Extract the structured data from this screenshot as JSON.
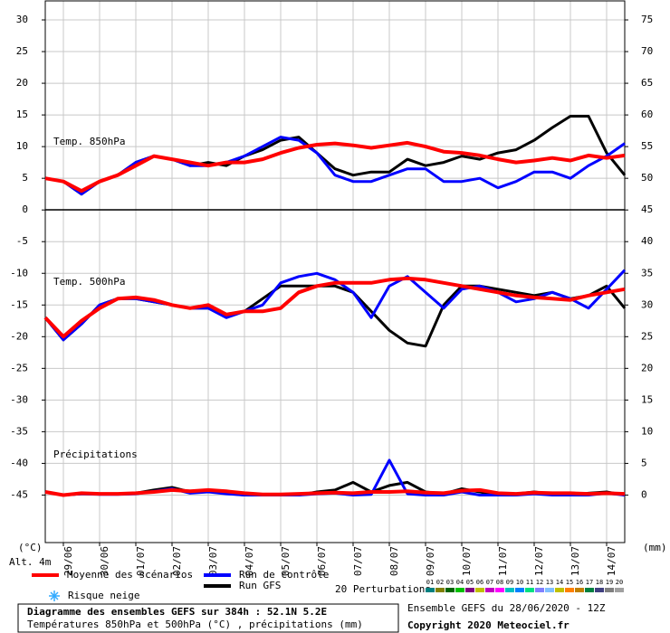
{
  "chart_data": {
    "type": "line",
    "title": "Diagramme des ensembles GEFS sur 384h : 52.1N 5.2E",
    "subtitle": "Températures 850hPa et 500hPa (°C) , précipitations (mm)",
    "run_info": "Ensemble GEFS du 28/06/2020 - 12Z",
    "copyright": "Copyright 2020 Meteociel.fr",
    "y_label": "(°C)",
    "y2_label": "(mm)",
    "altitude": "Alt. 4m",
    "snow_label": "Risque neige",
    "perturbations_label": "20 Perturbations",
    "perturbations": [
      {
        "name": "01",
        "color": "#008080"
      },
      {
        "name": "02",
        "color": "#808000"
      },
      {
        "name": "03",
        "color": "#006400"
      },
      {
        "name": "04",
        "color": "#00c000"
      },
      {
        "name": "05",
        "color": "#800080"
      },
      {
        "name": "06",
        "color": "#c0c000"
      },
      {
        "name": "07",
        "color": "#c000c0"
      },
      {
        "name": "08",
        "color": "#ff00ff"
      },
      {
        "name": "09",
        "color": "#00c0c0"
      },
      {
        "name": "10",
        "color": "#0080ff"
      },
      {
        "name": "11",
        "color": "#00e080"
      },
      {
        "name": "12",
        "color": "#8080ff"
      },
      {
        "name": "13",
        "color": "#80c0ff"
      },
      {
        "name": "14",
        "color": "#c0c000"
      },
      {
        "name": "15",
        "color": "#ff8000"
      },
      {
        "name": "16",
        "color": "#c08000"
      },
      {
        "name": "17",
        "color": "#008040"
      },
      {
        "name": "18",
        "color": "#404080"
      },
      {
        "name": "19",
        "color": "#808080"
      },
      {
        "name": "20",
        "color": "#a0a0a0"
      }
    ],
    "legend": [
      {
        "name": "Moyenne des scénarios",
        "color": "#ff0000"
      },
      {
        "name": "Run de contrôle",
        "color": "#0000ff"
      },
      {
        "name": "Run GFS",
        "color": "#000000"
      }
    ],
    "x": [
      0,
      12,
      24,
      36,
      48,
      60,
      72,
      84,
      96,
      108,
      120,
      132,
      144,
      156,
      168,
      180,
      192,
      204,
      216,
      228,
      240,
      252,
      264,
      276,
      288,
      300,
      312,
      324,
      336,
      348,
      360,
      372,
      384
    ],
    "xlim": [
      0,
      384
    ],
    "xticks": [
      {
        "value": 12,
        "label": "29/06"
      },
      {
        "value": 36,
        "label": "30/06"
      },
      {
        "value": 60,
        "label": "01/07"
      },
      {
        "value": 84,
        "label": "02/07"
      },
      {
        "value": 108,
        "label": "03/07"
      },
      {
        "value": 132,
        "label": "04/07"
      },
      {
        "value": 156,
        "label": "05/07"
      },
      {
        "value": 180,
        "label": "06/07"
      },
      {
        "value": 204,
        "label": "07/07"
      },
      {
        "value": 228,
        "label": "08/07"
      },
      {
        "value": 252,
        "label": "09/07"
      },
      {
        "value": 276,
        "label": "10/07"
      },
      {
        "value": 300,
        "label": "11/07"
      },
      {
        "value": 324,
        "label": "12/07"
      },
      {
        "value": 348,
        "label": "13/07"
      },
      {
        "value": 372,
        "label": "14/07"
      }
    ],
    "ylim": [
      -52.5,
      33
    ],
    "yticks": [
      30,
      25,
      20,
      15,
      10,
      5,
      0,
      -5,
      -10,
      -15,
      -20,
      -25,
      -30,
      -35,
      -40,
      -45
    ],
    "y2lim": [
      -7.5,
      78
    ],
    "y2ticks": [
      75,
      70,
      65,
      60,
      55,
      50,
      45,
      40,
      35,
      30,
      25,
      20,
      15,
      10,
      5,
      0
    ],
    "grid": true,
    "panels": [
      {
        "label": "Temp. 850hPa",
        "axis": "y",
        "series": [
          {
            "values": [
              5,
              4.5,
              3,
              4.5,
              5.5,
              7,
              8.5,
              8,
              7.5,
              7,
              7.5,
              7.5,
              8,
              9,
              9.8,
              10.3,
              10.5,
              10.2,
              9.8,
              10.2,
              10.6,
              10,
              9.2,
              9,
              8.6,
              8,
              7.5,
              7.8,
              8.2,
              7.8,
              8.6,
              8.2,
              8.6
            ]
          },
          {
            "values": [
              5,
              4.5,
              2.5,
              4.5,
              5.5,
              7.5,
              8.5,
              8,
              7,
              7,
              7.5,
              8.5,
              10,
              11.5,
              11,
              9,
              5.5,
              4.5,
              4.5,
              5.5,
              6.5,
              6.5,
              4.5,
              4.5,
              5,
              3.5,
              4.5,
              6,
              6,
              5,
              7,
              8.5,
              10.5
            ]
          },
          {
            "values": [
              5,
              4.5,
              2.5,
              4.5,
              5.5,
              7.5,
              8.5,
              8,
              7,
              7.5,
              7,
              8.5,
              9.5,
              11,
              11.5,
              9,
              6.5,
              5.5,
              6,
              6,
              8,
              7,
              7.5,
              8.5,
              8,
              9,
              9.5,
              11,
              13,
              14.8,
              14.8,
              9,
              5.5
            ]
          }
        ]
      },
      {
        "label": "Temp. 500hPa",
        "axis": "y",
        "series": [
          {
            "values": [
              -17,
              -20,
              -17.5,
              -15.5,
              -14,
              -13.8,
              -14.2,
              -15,
              -15.5,
              -15,
              -16.5,
              -16,
              -16,
              -15.5,
              -13,
              -12,
              -11.5,
              -11.5,
              -11.5,
              -11,
              -10.8,
              -11,
              -11.5,
              -12,
              -12.5,
              -13,
              -13.5,
              -13.8,
              -14,
              -14.2,
              -13.5,
              -13,
              -12.5
            ]
          },
          {
            "values": [
              -17,
              -20.5,
              -18,
              -15,
              -14,
              -14,
              -14.5,
              -15,
              -15.5,
              -15.5,
              -17,
              -16,
              -15,
              -11.5,
              -10.5,
              -10,
              -11,
              -13,
              -17,
              -12,
              -10.5,
              -13,
              -15.5,
              -12.5,
              -12,
              -13,
              -14.5,
              -14,
              -13,
              -14,
              -15.5,
              -12.5,
              -9.5
            ]
          },
          {
            "values": [
              -17,
              -20.5,
              -18,
              -15,
              -14,
              -14,
              -14.5,
              -15,
              -15.5,
              -15.5,
              -16.5,
              -16,
              -14,
              -12,
              -12,
              -12,
              -12,
              -13,
              -16,
              -19,
              -21,
              -21.5,
              -15,
              -12,
              -12,
              -12.5,
              -13,
              -13.5,
              -13,
              -14,
              -13.5,
              -12,
              -15.5
            ]
          }
        ]
      },
      {
        "label": "Précipitations",
        "axis": "y2",
        "series": [
          {
            "values": [
              0.5,
              0,
              0.3,
              0.2,
              0.2,
              0.3,
              0.5,
              0.8,
              0.6,
              0.8,
              0.6,
              0.3,
              0.1,
              0.1,
              0.2,
              0.3,
              0.4,
              0.3,
              0.5,
              0.5,
              0.6,
              0.4,
              0.3,
              0.7,
              0.8,
              0.3,
              0.2,
              0.4,
              0.3,
              0.3,
              0.2,
              0.3,
              0.2
            ]
          },
          {
            "values": [
              0.5,
              0,
              0.2,
              0.1,
              0.1,
              0.2,
              0.6,
              1,
              0.3,
              0.5,
              0.2,
              0,
              0,
              0,
              0,
              0.2,
              0.3,
              0,
              0.1,
              5.5,
              0.2,
              0,
              0,
              0.5,
              0,
              0,
              0,
              0.2,
              0,
              0,
              0,
              0.3,
              0
            ]
          },
          {
            "values": [
              0.5,
              0,
              0.2,
              0.2,
              0.2,
              0.3,
              0.8,
              1.2,
              0.5,
              0.8,
              0.3,
              0,
              0,
              0,
              0,
              0.5,
              0.8,
              2,
              0.5,
              1.5,
              2,
              0.5,
              0.2,
              1,
              0.5,
              0,
              0.2,
              0.5,
              0.2,
              0,
              0.3,
              0.5,
              0
            ]
          }
        ]
      }
    ]
  }
}
